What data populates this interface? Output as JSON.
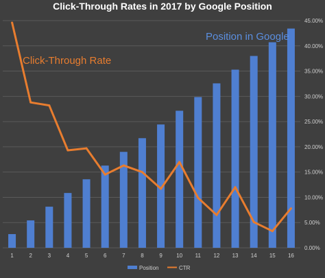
{
  "chart_data": {
    "type": "bar",
    "title": "Click-Through Rates in 2017 by Google Position",
    "categories": [
      "1",
      "2",
      "3",
      "4",
      "5",
      "6",
      "7",
      "8",
      "9",
      "10",
      "11",
      "12",
      "13",
      "14",
      "15",
      "16"
    ],
    "series": [
      {
        "name": "Position",
        "type": "bar",
        "axis": "hidden-left",
        "values": [
          1,
          2,
          3,
          4,
          5,
          6,
          7,
          8,
          9,
          10,
          11,
          12,
          13,
          14,
          15,
          16
        ]
      },
      {
        "name": "CTR",
        "type": "line",
        "axis": "right",
        "values": [
          44.6,
          28.8,
          28.2,
          19.3,
          19.7,
          14.5,
          16.3,
          15.0,
          11.7,
          17.0,
          9.9,
          6.5,
          12.0,
          5.1,
          3.3,
          7.8
        ]
      }
    ],
    "annotations": {
      "line_label": "Click-Through Rate",
      "bar_label": "Position in Google"
    },
    "y_right": {
      "ylim": [
        0,
        45
      ],
      "ticks": [
        "0.00%",
        "5.00%",
        "10.00%",
        "15.00%",
        "20.00%",
        "25.00%",
        "30.00%",
        "35.00%",
        "40.00%",
        "45.00%"
      ]
    },
    "legend": {
      "placement": "bottom",
      "items": [
        "Position",
        "CTR"
      ]
    },
    "grid": true,
    "colors": {
      "background": "#3f3f3f",
      "bar": "#4f7fd1",
      "line": "#e87d2f",
      "text": "#ffffff",
      "tick": "#d0d0d0",
      "grid": "#5a5a5a",
      "bar_label": "#5b8fe0"
    }
  }
}
